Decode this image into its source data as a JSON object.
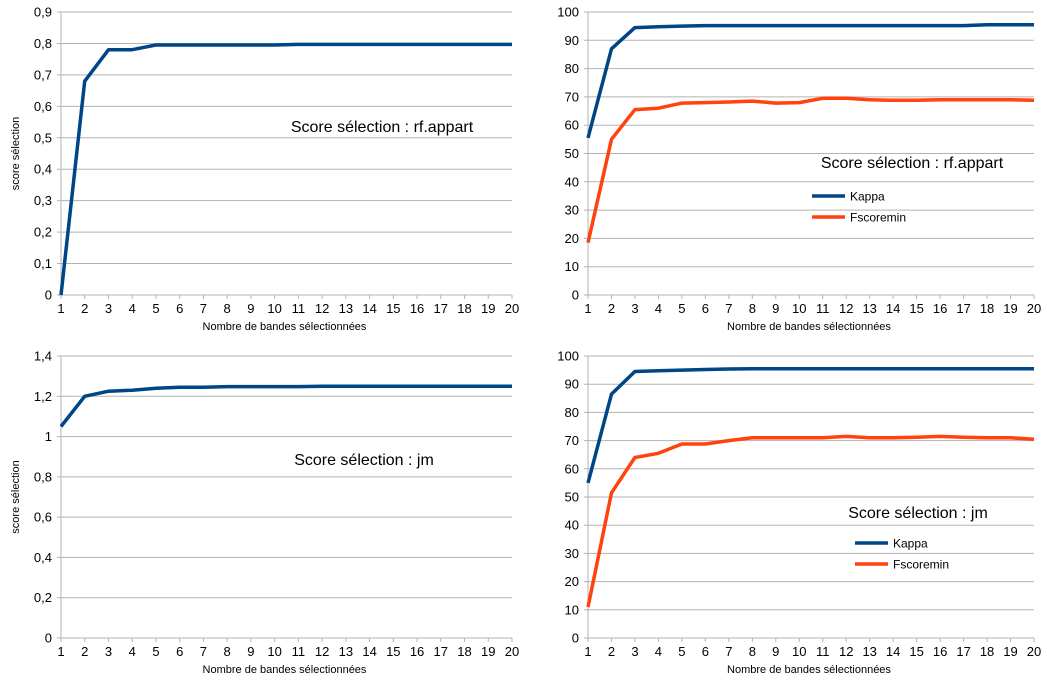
{
  "colors": {
    "kappa": "#004586",
    "fscoremin": "#ff420e",
    "grid": "#b3b3b3",
    "axis": "#b3b3b3"
  },
  "chart_data": [
    {
      "type": "line",
      "title": "",
      "annotation": "Score sélection : rf.appart",
      "xlabel": "Nombre de bandes sélectionnées",
      "ylabel": "score sélection",
      "x": [
        1,
        2,
        3,
        4,
        5,
        6,
        7,
        8,
        9,
        10,
        11,
        12,
        13,
        14,
        15,
        16,
        17,
        18,
        19,
        20
      ],
      "ylim": [
        0,
        0.9
      ],
      "yticks": [
        "0",
        "0,1",
        "0,2",
        "0,3",
        "0,4",
        "0,5",
        "0,6",
        "0,7",
        "0,8",
        "0,9"
      ],
      "grid": true,
      "legend": "none",
      "series": [
        {
          "color_key": "kappa",
          "values": [
            0.0,
            0.68,
            0.78,
            0.78,
            0.795,
            0.795,
            0.795,
            0.795,
            0.795,
            0.795,
            0.797,
            0.797,
            0.797,
            0.797,
            0.797,
            0.797,
            0.797,
            0.797,
            0.797,
            0.797
          ]
        }
      ]
    },
    {
      "type": "line",
      "title": "",
      "annotation": "Score sélection : rf.appart",
      "xlabel": "Nombre de bandes sélectionnées",
      "ylabel": "",
      "x": [
        1,
        2,
        3,
        4,
        5,
        6,
        7,
        8,
        9,
        10,
        11,
        12,
        13,
        14,
        15,
        16,
        17,
        18,
        19,
        20
      ],
      "ylim": [
        0,
        100
      ],
      "yticks": [
        "0",
        "10",
        "20",
        "30",
        "40",
        "50",
        "60",
        "70",
        "80",
        "90",
        "100"
      ],
      "grid": true,
      "legend": "center-right",
      "series": [
        {
          "name": "Kappa",
          "color_key": "kappa",
          "values": [
            55.5,
            87,
            94.5,
            94.8,
            95,
            95.2,
            95.2,
            95.2,
            95.2,
            95.2,
            95.2,
            95.2,
            95.2,
            95.2,
            95.2,
            95.2,
            95.2,
            95.5,
            95.5,
            95.5
          ]
        },
        {
          "name": "Fscoremin",
          "color_key": "fscoremin",
          "values": [
            18.5,
            55,
            65.5,
            66,
            67.8,
            68,
            68.2,
            68.5,
            67.8,
            68,
            69.5,
            69.5,
            69,
            68.8,
            68.8,
            69,
            69,
            69,
            69,
            68.8
          ]
        }
      ]
    },
    {
      "type": "line",
      "title": "",
      "annotation": "Score sélection : jm",
      "xlabel": "Nombre de bandes sélectionnées",
      "ylabel": "score sélection",
      "x": [
        1,
        2,
        3,
        4,
        5,
        6,
        7,
        8,
        9,
        10,
        11,
        12,
        13,
        14,
        15,
        16,
        17,
        18,
        19,
        20
      ],
      "ylim": [
        0,
        1.4
      ],
      "yticks": [
        "0",
        "0,2",
        "0,4",
        "0,6",
        "0,8",
        "1",
        "1,2",
        "1,4"
      ],
      "grid": true,
      "legend": "none",
      "series": [
        {
          "color_key": "kappa",
          "values": [
            1.05,
            1.2,
            1.225,
            1.23,
            1.24,
            1.245,
            1.245,
            1.248,
            1.248,
            1.248,
            1.248,
            1.25,
            1.25,
            1.25,
            1.25,
            1.25,
            1.25,
            1.25,
            1.25,
            1.25
          ]
        }
      ]
    },
    {
      "type": "line",
      "title": "",
      "annotation": "Score sélection : jm",
      "xlabel": "Nombre de bandes sélectionnées",
      "ylabel": "",
      "x": [
        1,
        2,
        3,
        4,
        5,
        6,
        7,
        8,
        9,
        10,
        11,
        12,
        13,
        14,
        15,
        16,
        17,
        18,
        19,
        20
      ],
      "ylim": [
        0,
        100
      ],
      "yticks": [
        "0",
        "10",
        "20",
        "30",
        "40",
        "50",
        "60",
        "70",
        "80",
        "90",
        "100"
      ],
      "grid": true,
      "legend": "center-right",
      "series": [
        {
          "name": "Kappa",
          "color_key": "kappa",
          "values": [
            55,
            86.5,
            94.5,
            94.8,
            95,
            95.2,
            95.4,
            95.5,
            95.5,
            95.5,
            95.5,
            95.5,
            95.5,
            95.5,
            95.5,
            95.5,
            95.5,
            95.5,
            95.5,
            95.5
          ]
        },
        {
          "name": "Fscoremin",
          "color_key": "fscoremin",
          "values": [
            11,
            51.5,
            64,
            65.5,
            68.8,
            68.8,
            70,
            71,
            71,
            71,
            71,
            71.5,
            71,
            71,
            71.2,
            71.5,
            71.2,
            71,
            71,
            70.5
          ]
        }
      ]
    }
  ]
}
